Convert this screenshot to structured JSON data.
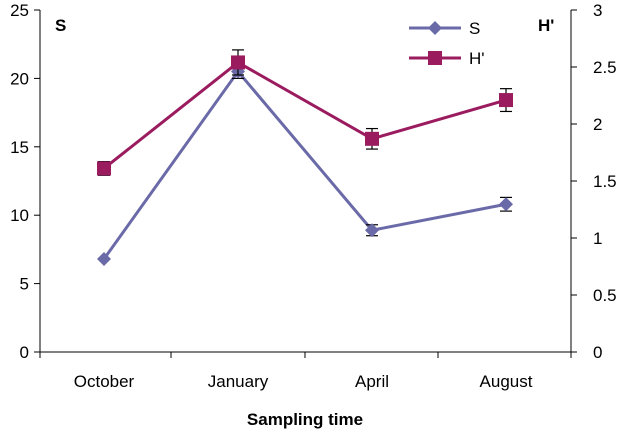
{
  "chart_data": {
    "type": "line",
    "categories": [
      "October",
      "January",
      "April",
      "August"
    ],
    "xlabel": "Sampling time",
    "y_left": {
      "label": "S",
      "lim": [
        0,
        25
      ],
      "ticks": [
        "0",
        "5",
        "10",
        "15",
        "20",
        "25"
      ]
    },
    "y_right": {
      "label": "H'",
      "lim": [
        0,
        3
      ],
      "ticks": [
        "0",
        "0.5",
        "1",
        "1.5",
        "2",
        "2.5",
        "3"
      ]
    },
    "grid": false,
    "legend_position": "top-right",
    "series": [
      {
        "name": "S",
        "axis": "left",
        "marker": "diamond",
        "color": "#6b6aa8",
        "values": [
          6.8,
          20.5,
          8.9,
          10.8
        ],
        "errors": [
          0.0,
          0.5,
          0.4,
          0.5
        ]
      },
      {
        "name": "H'",
        "axis": "right",
        "marker": "square",
        "color": "#9b1b5f",
        "values": [
          1.61,
          2.54,
          1.87,
          2.21
        ],
        "errors": [
          0.06,
          0.11,
          0.09,
          0.1
        ]
      }
    ]
  }
}
